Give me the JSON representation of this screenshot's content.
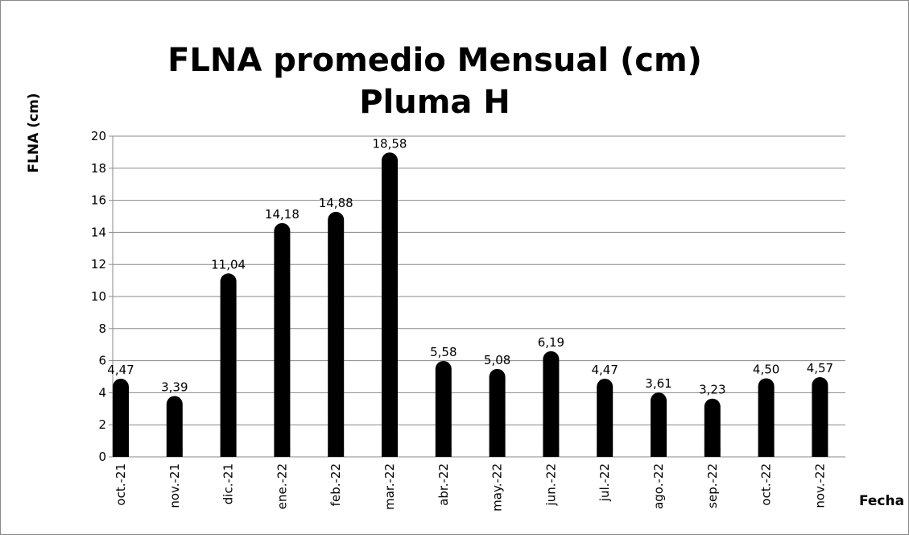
{
  "chart_data": {
    "type": "bar",
    "title": [
      "FLNA promedio Mensual (cm)",
      "Pluma H"
    ],
    "y_label": "FLNA (cm)",
    "x_label": "Fecha",
    "categories": [
      "oct.-21",
      "nov.-21",
      "dic.-21",
      "ene.-22",
      "feb.-22",
      "mar.-22",
      "abr.-22",
      "may.-22",
      "jun.-22",
      "jul.-22",
      "ago.-22",
      "sep.-22",
      "oct.-22",
      "nov.-22"
    ],
    "values": [
      4.47,
      3.39,
      11.04,
      14.18,
      14.88,
      18.58,
      5.58,
      5.08,
      6.19,
      4.47,
      3.61,
      3.23,
      4.5,
      4.57
    ],
    "value_labels": [
      "4,47",
      "3,39",
      "11,04",
      "14,18",
      "14,88",
      "18,58",
      "5,58",
      "5,08",
      "6,19",
      "4,47",
      "3,61",
      "3,23",
      "4,50",
      "4,57"
    ],
    "color": "#000000",
    "ylim": [
      0,
      20
    ],
    "yticks": [
      0,
      2,
      4,
      6,
      8,
      10,
      12,
      14,
      16,
      18,
      20
    ],
    "grid": true
  }
}
